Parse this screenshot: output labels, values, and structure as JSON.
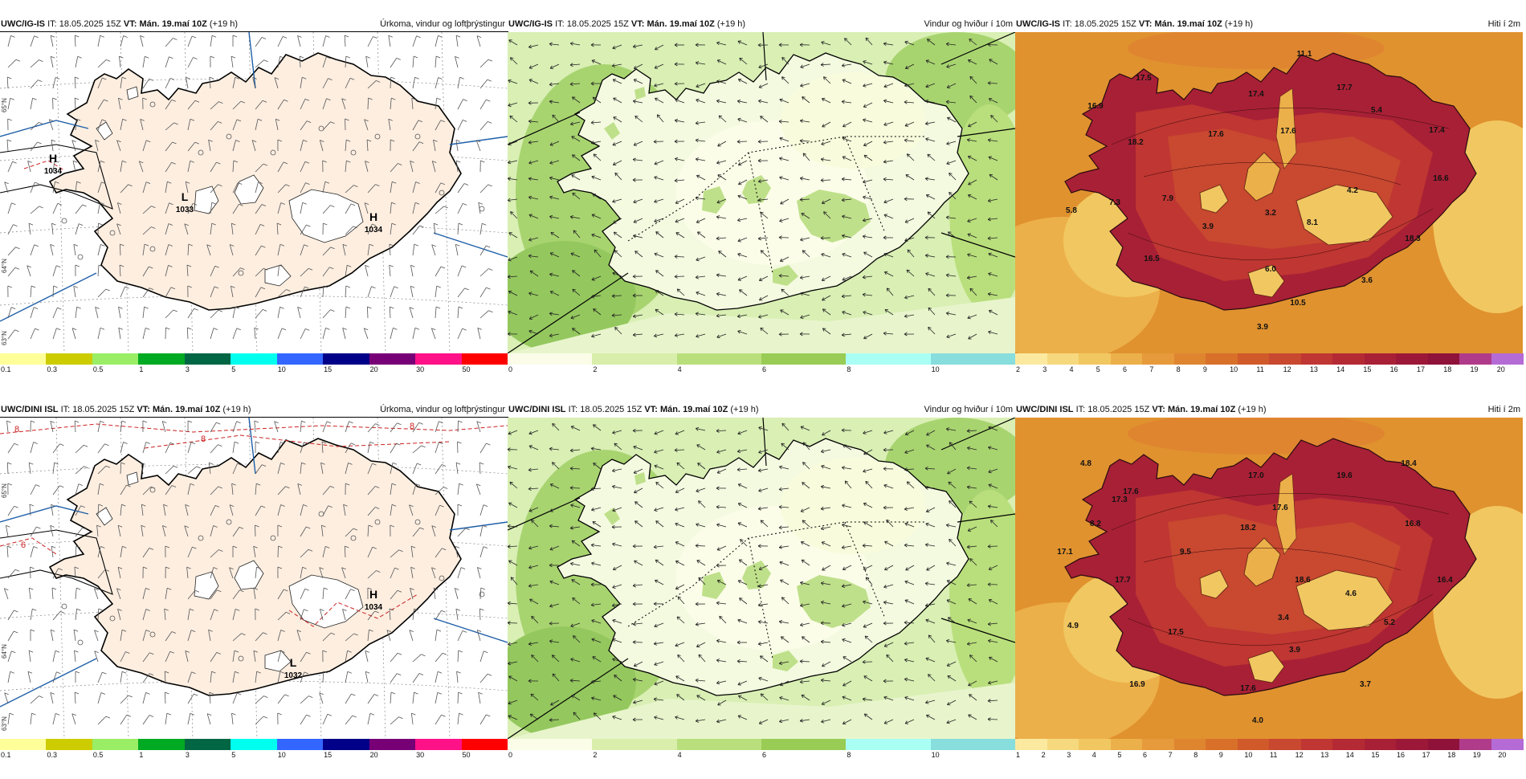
{
  "panels": [
    {
      "id": "p1",
      "model": "UWC/IG-IS",
      "it_label": "IT:",
      "it_value": "18.05.2025 15Z",
      "vt_label": "VT:",
      "vt_value": "Mán. 19.maí 10Z",
      "lead": "(+19 h)",
      "title": "Úrkoma, vindur og loftþrýstingur",
      "kind": "precip",
      "colorbar": {
        "colors": [
          "#ffff99",
          "#cccc00",
          "#99ee66",
          "#00aa22",
          "#006644",
          "#00ffee",
          "#3366ff",
          "#000088",
          "#770077",
          "#ff1188",
          "#ff0000"
        ],
        "ticks": [
          "0.1",
          "0.3",
          "0.5",
          "1",
          "3",
          "5",
          "10",
          "15",
          "20",
          "30",
          "50"
        ]
      },
      "pressure_labels": [
        {
          "letter": "H",
          "value": "1034"
        },
        {
          "letter": "L",
          "value": "1033"
        },
        {
          "letter": "H",
          "value": "1034"
        }
      ],
      "lat_labels": [
        "65°N",
        "64°N",
        "63°N"
      ]
    },
    {
      "id": "p2",
      "model": "UWC/IG-IS",
      "it_label": "IT:",
      "it_value": "18.05.2025 15Z",
      "vt_label": "VT:",
      "vt_value": "Mán. 19.maí 10Z",
      "lead": "(+19 h)",
      "title": "Vindur og hviður í 10m",
      "kind": "wind",
      "colorbar": {
        "colors": [
          "#fbfde8",
          "#d8eeaa",
          "#b9df7c",
          "#99cc55",
          "#aafff5",
          "#88dddd"
        ],
        "ticks": [
          "0",
          "2",
          "4",
          "6",
          "8",
          "10"
        ]
      }
    },
    {
      "id": "p3",
      "model": "UWC/IG-IS",
      "it_label": "IT:",
      "it_value": "18.05.2025 15Z",
      "vt_label": "VT:",
      "vt_value": "Mán. 19.maí 10Z",
      "lead": "(+19 h)",
      "title": "Hiti í 2m",
      "kind": "temp",
      "colorbar": {
        "colors": [
          "#fbe9a0",
          "#f6d97e",
          "#f1c761",
          "#ecb04a",
          "#e69a3b",
          "#df8530",
          "#d8702a",
          "#d05a2a",
          "#c84830",
          "#bf3632",
          "#b42a34",
          "#a82036",
          "#9c1838",
          "#8e1239",
          "#b03b8a",
          "#b46bd6"
        ],
        "ticks": [
          "2",
          "3",
          "4",
          "5",
          "6",
          "7",
          "8",
          "9",
          "10",
          "11",
          "12",
          "13",
          "14",
          "15",
          "16",
          "17",
          "18",
          "19",
          "20"
        ]
      },
      "temp_labels": [
        "11.1",
        "17.5",
        "17.4",
        "17.7",
        "17.6",
        "18.2",
        "17.6",
        "16.9",
        "5.4",
        "17.4",
        "5.8",
        "7.3",
        "7.9",
        "3.9",
        "3.2",
        "8.1",
        "4.2",
        "16.6",
        "16.5",
        "6.0",
        "18.3",
        "3.6",
        "10.5",
        "3.9"
      ]
    },
    {
      "id": "p4",
      "model": "UWC/DINI ISL",
      "it_label": "IT:",
      "it_value": "18.05.2025 15Z",
      "vt_label": "VT:",
      "vt_value": "Mán. 19.maí 10Z",
      "lead": "(+19 h)",
      "title": "Úrkoma, vindur og loftþrýstingur",
      "kind": "precip",
      "colorbar": {
        "colors": [
          "#ffff99",
          "#cccc00",
          "#99ee66",
          "#00aa22",
          "#006644",
          "#00ffee",
          "#3366ff",
          "#000088",
          "#770077",
          "#ff1188",
          "#ff0000"
        ],
        "ticks": [
          "0.1",
          "0.3",
          "0.5",
          "1",
          "3",
          "5",
          "10",
          "15",
          "20",
          "30",
          "50"
        ]
      },
      "pressure_labels": [
        {
          "letter": "H",
          "value": "1034"
        },
        {
          "letter": "L",
          "value": "1032"
        }
      ],
      "isotherm_labels": [
        "8",
        "8",
        "8",
        "6"
      ],
      "lat_labels": [
        "65°N",
        "64°N",
        "63°N"
      ]
    },
    {
      "id": "p5",
      "model": "UWC/DINI ISL",
      "it_label": "IT:",
      "it_value": "18.05.2025 15Z",
      "vt_label": "VT:",
      "vt_value": "Mán. 19.maí 10Z",
      "lead": "(+19 h)",
      "title": "Vindur og hviður í 10m",
      "kind": "wind",
      "colorbar": {
        "colors": [
          "#fbfde8",
          "#d8eeaa",
          "#b9df7c",
          "#99cc55",
          "#aafff5",
          "#88dddd"
        ],
        "ticks": [
          "0",
          "2",
          "4",
          "6",
          "8",
          "10"
        ]
      }
    },
    {
      "id": "p6",
      "model": "UWC/DINI ISL",
      "it_label": "IT:",
      "it_value": "18.05.2025 15Z",
      "vt_label": "VT:",
      "vt_value": "Mán. 19.maí 10Z",
      "lead": "(+19 h)",
      "title": "Hiti í 2m",
      "kind": "temp",
      "colorbar": {
        "colors": [
          "#fbe9a0",
          "#f6d97e",
          "#f1c761",
          "#ecb04a",
          "#e69a3b",
          "#df8530",
          "#d8702a",
          "#d05a2a",
          "#c84830",
          "#bf3632",
          "#b42a34",
          "#a82036",
          "#9c1838",
          "#8e1239",
          "#b03b8a",
          "#b46bd6"
        ],
        "ticks": [
          "1",
          "2",
          "3",
          "4",
          "5",
          "6",
          "7",
          "8",
          "9",
          "10",
          "11",
          "12",
          "13",
          "14",
          "15",
          "16",
          "17",
          "18",
          "19",
          "20"
        ]
      },
      "temp_labels": [
        "4.8",
        "17.6",
        "17.0",
        "19.6",
        "18.4",
        "17.3",
        "17.6",
        "8.2",
        "18.2",
        "16.8",
        "17.1",
        "9.5",
        "17.7",
        "18.6",
        "4.6",
        "16.4",
        "4.9",
        "17.5",
        "3.4",
        "5.2",
        "3.9",
        "16.9",
        "17.6",
        "3.7",
        "4.0"
      ]
    }
  ]
}
